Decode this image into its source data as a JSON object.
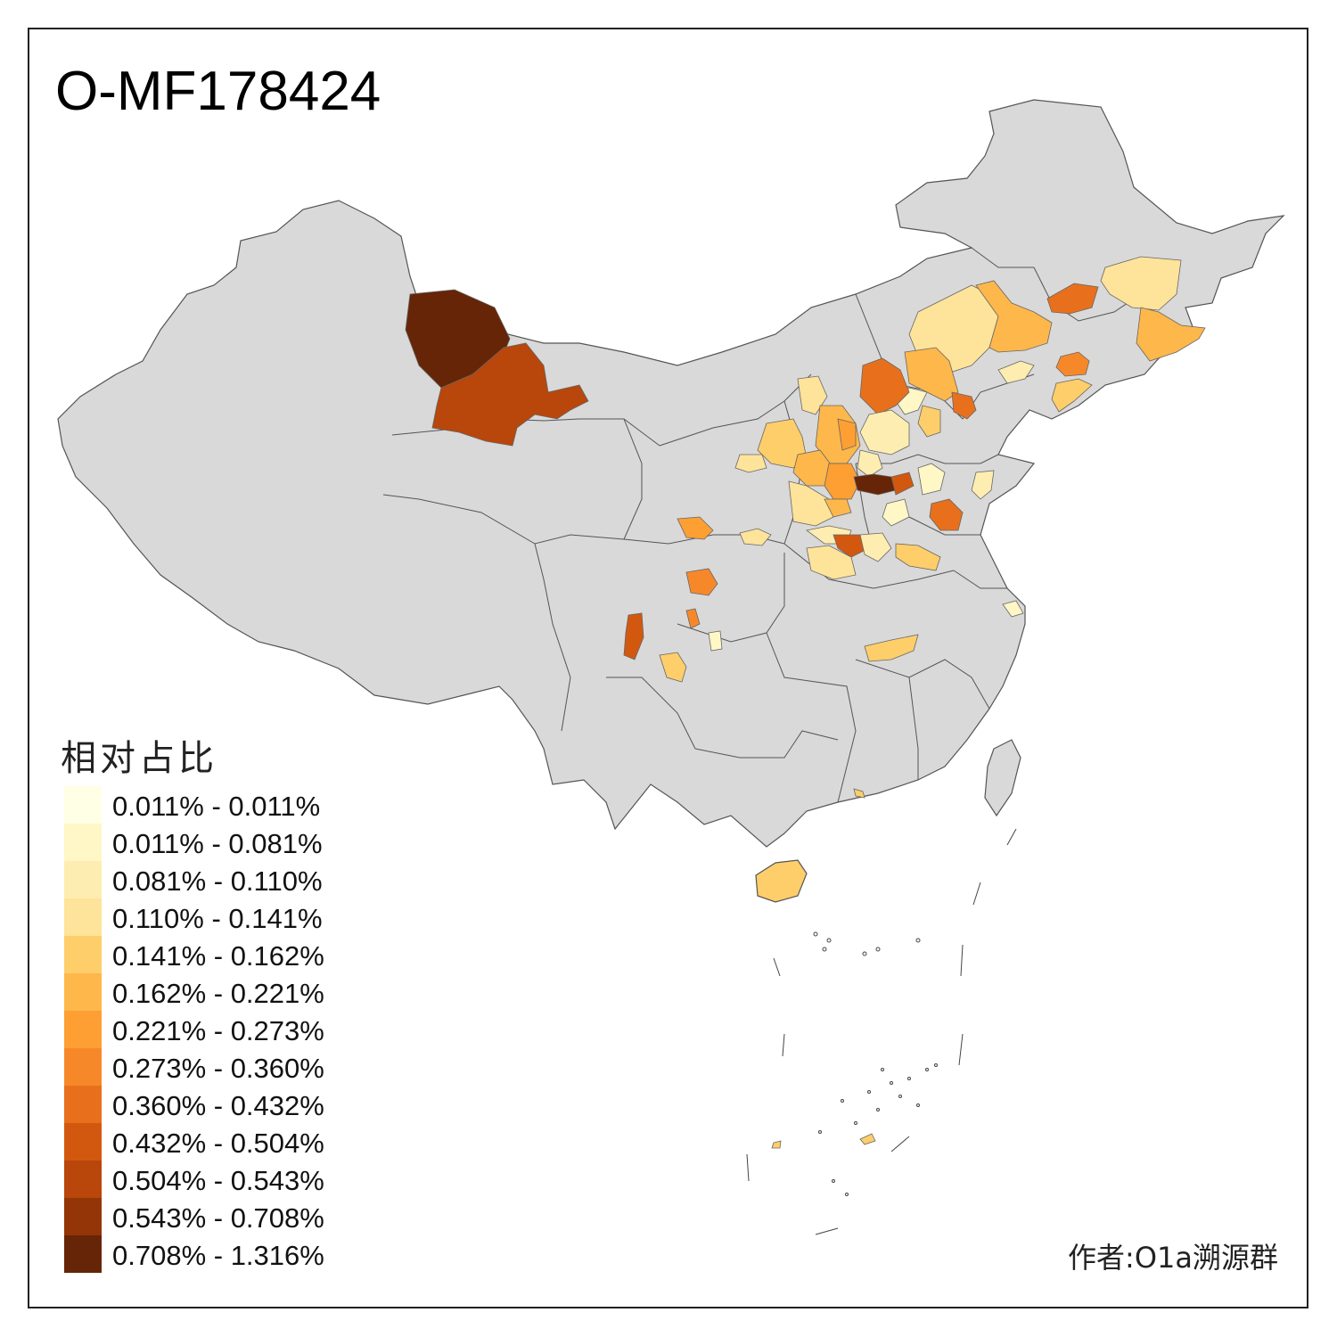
{
  "title": "O-MF178424",
  "legend": {
    "title": "相对占比",
    "items": [
      {
        "label": "0.011% - 0.011%",
        "color": "#FFFFE5"
      },
      {
        "label": "0.011% - 0.081%",
        "color": "#FFF7C6"
      },
      {
        "label": "0.081% - 0.110%",
        "color": "#FEEDB0"
      },
      {
        "label": "0.110% - 0.141%",
        "color": "#FEE39A"
      },
      {
        "label": "0.141% - 0.162%",
        "color": "#FECE6A"
      },
      {
        "label": "0.162% - 0.221%",
        "color": "#FEB74A"
      },
      {
        "label": "0.221% - 0.273%",
        "color": "#FE9F33"
      },
      {
        "label": "0.273% - 0.360%",
        "color": "#F7882A"
      },
      {
        "label": "0.360% - 0.432%",
        "color": "#E8701C"
      },
      {
        "label": "0.432% - 0.504%",
        "color": "#D3580F"
      },
      {
        "label": "0.504% - 0.543%",
        "color": "#B9460A"
      },
      {
        "label": "0.543% - 0.708%",
        "color": "#933507"
      },
      {
        "label": "0.708% - 1.316%",
        "color": "#662506"
      }
    ]
  },
  "credit": "作者:O1a溯源群",
  "map": {
    "base_color": "#D9D9D9",
    "border_color": "#555555"
  }
}
